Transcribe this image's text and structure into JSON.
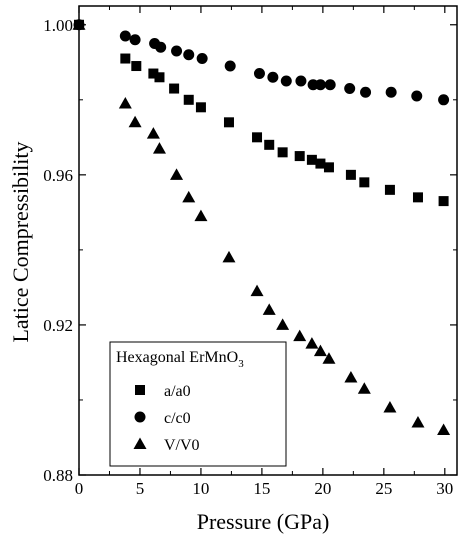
{
  "chart_data": {
    "type": "scatter",
    "title": "",
    "xlabel": "Pressure (GPa)",
    "ylabel": "Latice Compressibility",
    "xlim": [
      0,
      31
    ],
    "ylim": [
      0.88,
      1.005
    ],
    "xticks": [
      0,
      5,
      10,
      15,
      20,
      25,
      30
    ],
    "yticks": [
      0.88,
      0.92,
      0.96,
      1.0
    ],
    "xtick_labels": [
      "0",
      "5",
      "10",
      "15",
      "20",
      "25",
      "30"
    ],
    "ytick_labels": [
      "0.88",
      "0.92",
      "0.96",
      "1.00"
    ],
    "grid": false,
    "legend": {
      "title_main": "Hexagonal ErMnO",
      "title_sub": "3",
      "placement": "lower-left"
    },
    "series": [
      {
        "name": "a/a0",
        "marker": "square",
        "color": "#000000",
        "x": [
          0.0,
          3.8,
          4.7,
          6.1,
          6.6,
          7.8,
          9.0,
          10.0,
          12.3,
          14.6,
          15.6,
          16.7,
          18.1,
          19.1,
          19.8,
          20.5,
          22.3,
          23.4,
          25.5,
          27.8,
          29.9
        ],
        "y": [
          1.0,
          0.991,
          0.989,
          0.987,
          0.986,
          0.983,
          0.98,
          0.978,
          0.974,
          0.97,
          0.968,
          0.966,
          0.965,
          0.964,
          0.963,
          0.962,
          0.96,
          0.958,
          0.956,
          0.954,
          0.953
        ]
      },
      {
        "name": "c/c0",
        "marker": "circle",
        "color": "#000000",
        "x": [
          0.0,
          3.8,
          4.6,
          6.2,
          6.7,
          8.0,
          9.0,
          10.1,
          12.4,
          14.8,
          15.9,
          17.0,
          18.2,
          19.2,
          19.8,
          20.6,
          22.2,
          23.5,
          25.6,
          27.7,
          29.9
        ],
        "y": [
          1.0,
          0.997,
          0.996,
          0.995,
          0.994,
          0.993,
          0.992,
          0.991,
          0.989,
          0.987,
          0.986,
          0.985,
          0.985,
          0.984,
          0.984,
          0.984,
          0.983,
          0.982,
          0.982,
          0.981,
          0.98
        ]
      },
      {
        "name": "V/V0",
        "marker": "triangle",
        "color": "#000000",
        "x": [
          0.0,
          3.8,
          4.6,
          6.1,
          6.6,
          8.0,
          9.0,
          10.0,
          12.3,
          14.6,
          15.6,
          16.7,
          18.1,
          19.1,
          19.8,
          20.5,
          22.3,
          23.4,
          25.5,
          27.8,
          29.9
        ],
        "y": [
          1.0,
          0.979,
          0.974,
          0.971,
          0.967,
          0.96,
          0.954,
          0.949,
          0.938,
          0.929,
          0.924,
          0.92,
          0.917,
          0.915,
          0.913,
          0.911,
          0.906,
          0.903,
          0.898,
          0.894,
          0.892
        ]
      }
    ]
  }
}
